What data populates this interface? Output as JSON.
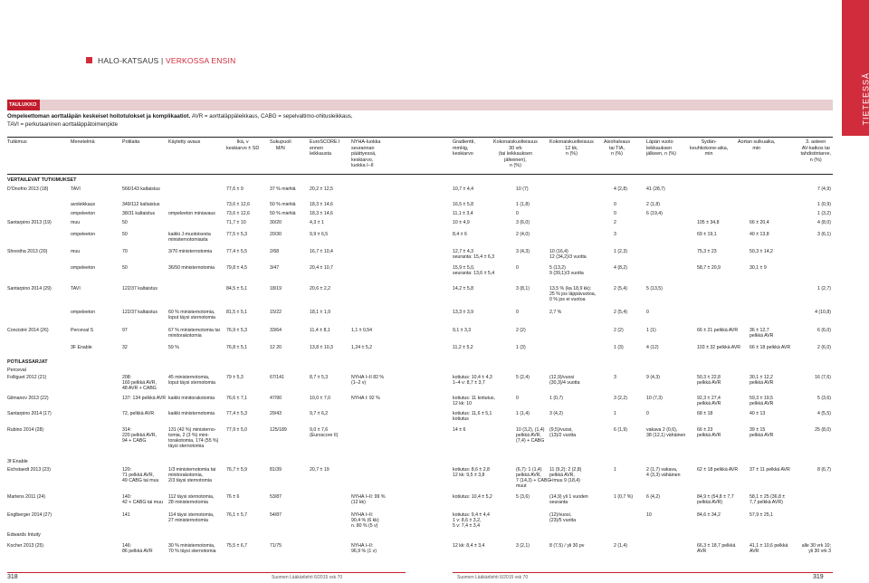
{
  "header": {
    "breadcrumb_a": "HALO-KATSAUS |",
    "breadcrumb_b": "VERKOSSA ENSIN",
    "side_label": "TIETEESSÄ"
  },
  "table": {
    "number": "TAULUKKO 2.",
    "title": "Ompeleettoman aorttaläpän keskeiset hoitotulokset ja komplikaatiot.",
    "title_abbr": "AVR = aorttaläppäleikkaus, CABG = sepelvaltimo-ohitusleikkaus,",
    "title_abbr2": "TAVI = perkutaaninen aorttaläppätoimenpide",
    "columns": [
      "Tutkimus",
      "Menetelmä",
      "Potilaita",
      "Käytetty avaus",
      "Ikä, v\nkeskiarvo ± SD",
      "Sukupuoli\nM/N",
      "EuroSCORE I\nennen\nleikkausta",
      "NYHA-luokka\nseurannan\npäättyessä,\nkeskiarvo,\nluokka I–II",
      "Gradientti,\nmmHg,\nkeskiarvo",
      "Kokonaiskuolleisuus\n30 vrk\n(tai leikkauksen\njälkeinen),\nn (%)",
      "Kokonaiskuolleisuus\n12 kk,\nn (%)",
      "Aivohalvaus\ntai TIA,\nn (%)",
      "Läpän vuoto\nleikkauksen\njälkeen, n (%)",
      "Sydän-\nkeuhkokone-aika,\nmin",
      "Aortan sulkuaika,\nmin",
      "3. asteen\nAV-katkos tai\ntahdistintarve,\nn (%)"
    ],
    "sections": [
      "VERTAILEVAT TUTKIMUKSET",
      "POTILASSARJAT",
      "Perceval",
      "3f Enable",
      "Edwards Intuity"
    ],
    "rows": [
      {
        "t": "D'Onofrio 2013 (18)",
        "m": "TAVI",
        "p": "566/143 kaltaistus",
        "a": "",
        "age": "77,6 ± 9",
        "sex": "37 % miehiä",
        "euro": "20,2 ± 12,5",
        "nyha": "",
        "grad": "10,7 ± 4,4",
        "m30": "10 (7)",
        "m12": "",
        "stroke": "4 (2,8)",
        "leak": "41 (28,7)",
        "cpb": "",
        "xcl": "",
        "av": "7 (4,9)"
      },
      {
        "t": "",
        "m": "avoleikkaus",
        "p": "349/112 kaltaistus",
        "a": "",
        "age": "73,6 ± 12,6",
        "sex": "50 % miehiä",
        "euro": "18,3 ± 14,6",
        "nyha": "",
        "grad": "16,5 ± 5,8",
        "m30": "1 (1,8)",
        "m12": "",
        "stroke": "0",
        "leak": "2 (1,8)",
        "cpb": "",
        "xcl": "",
        "av": "1 (0,9)"
      },
      {
        "t": "",
        "m": "ompeleeton",
        "p": "38/31 kaltaistus",
        "a": "ompeleeton miniavaus",
        "age": "73,6 ± 12,6",
        "sex": "50 % miehiä",
        "euro": "18,3 ± 14,6",
        "nyha": "",
        "grad": "11,1 ± 3,4",
        "m30": "0",
        "m12": "",
        "stroke": "0",
        "leak": "6 (19,4)",
        "cpb": "",
        "xcl": "",
        "av": "1 (3,2)"
      },
      {
        "t": "Santarpino 2013 (19)",
        "m": "muu",
        "p": "50",
        "a": "",
        "age": "71,7 ± 10",
        "sex": "30/20",
        "euro": "4,3 ± 1",
        "nyha": "",
        "grad": "10 ± 4,9",
        "m30": "3 (6,0)",
        "m12": "",
        "stroke": "2",
        "leak": "",
        "cpb": "105 ± 34,8",
        "xcl": "66 ± 20,4",
        "av": "4 (8,0)"
      },
      {
        "t": "",
        "m": "ompeleeton",
        "p": "50",
        "a": "kaikki J-muotoisesta\nministernotomiasta",
        "age": "77,5 ± 5,3",
        "sex": "20/30",
        "euro": "9,9 ± 6,5",
        "nyha": "",
        "grad": "8,4 ± 6",
        "m30": "2 (4,0)",
        "m12": "",
        "stroke": "3",
        "leak": "",
        "cpb": "69 ± 19,1",
        "xcl": "40 ± 13,8",
        "av": "3 (6,1)"
      },
      {
        "t": "Shrestha 2013 (20)",
        "m": "muu",
        "p": "70",
        "a": "3/70 ministernotomia",
        "age": "77,4 ± 5,5",
        "sex": "2/68",
        "euro": "16,7 ± 10,4",
        "nyha": "",
        "grad": "12,7 ± 4,3\nseuranta: 15,4 ± 6,3",
        "m30": "3 (4,3)",
        "m12": "10 (16,4)\n12 (34,2)/3 vuotta",
        "stroke": "1 (2,3)",
        "leak": "",
        "cpb": "75,3 ± 23",
        "xcl": "50,3 ± 14,2",
        "av": ""
      },
      {
        "t": "",
        "m": "ompeleeton",
        "p": "50",
        "a": "36/50 ministernotomia",
        "age": "79,8 ± 4,5",
        "sex": "3/47",
        "euro": "20,4 ± 10,7",
        "nyha": "",
        "grad": "15,9 ± 5,0,\nseuranta: 13,6 ± 5,4",
        "m30": "0",
        "m12": "5 (13,2)\n9 (39,1)/3 vuotta",
        "stroke": "4 (8,2)",
        "leak": "",
        "cpb": "58,7 ± 20,9",
        "xcl": "30,1 ± 9",
        "av": ""
      },
      {
        "t": "Santarpino 2014 (29)",
        "m": "TAVI",
        "p": "122/37 kaltaistus",
        "a": "",
        "age": "84,5 ± 5,1",
        "sex": "18/19",
        "euro": "20,6 ± 2,2",
        "nyha": "",
        "grad": "14,2 ± 5,8",
        "m30": "3 (8,1)",
        "m12": "13,5 % (ka 18,9 kk):\n25 % jos läppävuotoa,\n0 % jos ei vuotoa",
        "stroke": "2 (5,4)",
        "leak": "5 (13,5)",
        "cpb": "",
        "xcl": "",
        "av": "1 (2,7)"
      },
      {
        "t": "",
        "m": "ompeleeton",
        "p": "122/37 kaltaistus",
        "a": "60 % ministernotomia,\nloput täysi sternotomia",
        "age": "81,5 ± 5,1",
        "sex": "15/22",
        "euro": "18,1 ± 1,9",
        "nyha": "",
        "grad": "13,3 ± 3,9",
        "m30": "0",
        "m12": "2,7 %",
        "stroke": "2 (5,4)",
        "leak": "0",
        "cpb": "",
        "xcl": "",
        "av": "4 (10,8)"
      },
      {
        "t": "Concistrè 2014 (26)",
        "m": "Perceval S",
        "p": "97",
        "a": "67 % ministernotomia tai\nminitorakotomia",
        "age": "76,9 ± 5,3",
        "sex": "33/64",
        "euro": "11,4 ± 8,1",
        "nyha": "1,1 ± 0,54",
        "grad": "9,1 ± 3,3",
        "m30": "2 (2)",
        "m12": "",
        "stroke": "2 (2)",
        "leak": "1 (1)",
        "cpb": "66 ± 21 pelkkä AVR",
        "xcl": "36 ± 12,7\npelkkä AVR",
        "av": "6 (6,0)"
      },
      {
        "t": "",
        "m": "3F Enable",
        "p": "32",
        "a": "59 %",
        "age": "76,8 ± 5,1",
        "sex": "12 20",
        "euro": "13,8 ± 10,3",
        "nyha": "1,24 ± 5,2",
        "grad": "11,2 ± 5,2",
        "m30": "1 (3)",
        "m12": "",
        "stroke": "1 (3)",
        "leak": "4 (12)",
        "cpb": "103 ± 32 pelkkä AVR",
        "xcl": "66 ± 18 pelkkä AVR",
        "av": "2 (6,0)"
      },
      {
        "t": "Folliguet 2012 (21)",
        "m": "",
        "p": "208:\n160 pelkkä AVR,\n48 AVR + CABG",
        "a": "45 ministernotomia,\nloput täysi sternotomia",
        "age": "79 ± 5,3",
        "sex": "67/141",
        "euro": "8,7 ± 5,3",
        "nyha": "NYHA I–II 82 %\n(1–2 v)",
        "grad": "kotiutus: 10,4 ± 4,3\n1–4 v: 8,7 ± 3,7",
        "m30": "5 (2,4)",
        "m12": "(12,9)/vuosi\n(30,3)/4 vuotta",
        "stroke": "3",
        "leak": "9 (4,3)",
        "cpb": "50,3 ± 22,8\npelkkä AVR",
        "xcl": "30,1 ± 12,2\npelkkä AVR",
        "av": "16 (7,6)"
      },
      {
        "t": "Gilmanov 2013 (22)",
        "m": "",
        "p": "137: 134 pelkkä AVR",
        "a": "kaikki minitorakotomia",
        "age": "76,6 ± 7,1",
        "sex": "47/90",
        "euro": "10,0 ± 7,0",
        "nyha": "NYHA I: 92 %",
        "grad": "kotiutus: 11 kotiutus,\n12 kk: 10",
        "m30": "0",
        "m12": "1 (0,7)",
        "stroke": "3 (2,2)",
        "leak": "10 (7,3)",
        "cpb": "92,3 ± 27,4\npelkkä AVR",
        "xcl": "59,3 ± 19,5\npelkkä AVR",
        "av": "5 (3,6)"
      },
      {
        "t": "Santarpino 2014 (17)",
        "m": "",
        "p": "72, pelkkä AVR",
        "a": "kaikki ministernotomia",
        "age": "77,4 ± 5,3",
        "sex": "29/43",
        "euro": "9,7 ± 6,2",
        "nyha": "",
        "grad": "kotiutus: 11,6 ± 5,1\nkotiutus",
        "m30": "1 (1,4)",
        "m12": "3 (4,2)",
        "stroke": "1",
        "leak": "0",
        "cpb": "68 ± 18",
        "xcl": "40 ± 13",
        "av": "4 (5,5)"
      },
      {
        "t": "Rubino 2014 (28)",
        "m": "",
        "p": "314:\n220 pelkkä AVR,\n94 + CABG",
        "a": "131 (42 %) ministerno-\ntomia, 2 (3 %) mini-\ntorakotomia, 174 (55 %)\ntäysi sternotomia",
        "age": "77,9 ± 5,0",
        "sex": "125/189",
        "euro": "9,0 ± 7,6\n(Euroscore II)",
        "nyha": "",
        "grad": "14 ± 6",
        "m30": "10 (3,2), (1,4)\npelkkä AVR,\n(7,4) + CABG",
        "m12": "(9,5)/vuosi,\n(13)/2 vuotta",
        "stroke": "6 (1,9)",
        "leak": "vakava 2 (0,6),\n38 (12,1) vähäinen",
        "cpb": "66 ± 23\npelkkä AVR",
        "xcl": "39 ± 15\npelkkä AVR",
        "av": "25 (8,0)"
      },
      {
        "t": "Eichstaedt 2013 (23)",
        "m": "",
        "p": "120:\n71 pelkkä AVR,\n49 CABG tai muu",
        "a": "1/3 ministernotomia tai\nminitorakotomia,\n2/3 täysi sternotomia",
        "age": "76,7 ± 5,9",
        "sex": "81/39",
        "euro": "20,7 ± 19",
        "nyha": "",
        "grad": "kotiutus: 8,6 ± 2,8\n12 kk: 9,5 ± 3,8",
        "m30": "(6,7): 1 (1,4)\npelkkä AVR,\n7 (14,3) + CABG /\nmuut",
        "m12": "11 (9,2): 2 (2,8)\npelkkä AVR,\n+ muu 9 (18,4)",
        "stroke": "1",
        "leak": "2 (1,7) vakava,\n4 (3,3) vähäinen",
        "cpb": "62 ± 18 pelkkä AVR",
        "xcl": "37 ± 11 pelkkä AVR",
        "av": "8 (6,7)"
      },
      {
        "t": "Martens 2011 (24)",
        "m": "",
        "p": "140:\n42 + CABG tai muu",
        "a": "112 täysi sternotomia,\n28 ministernotomia",
        "age": "76 ± 6",
        "sex": "53/87",
        "euro": "",
        "nyha": "NYHA I–II: 99 %\n(12 kk)",
        "grad": "kotiutus: 10,4 ± 5,2",
        "m30": "5 (3,6)",
        "m12": "(14,9) yli 1 vuoden\nseuranta",
        "stroke": "1 (0,7 %)",
        "leak": "6 (4,2)",
        "cpb": "84,9 ± (54,8 ± 7,7\npelkkä AVR)",
        "xcl": "58,1 ± 25 (36,8 ±\n7,7 pelkkä AVR)",
        "av": ""
      },
      {
        "t": "Englberger 2014 (27)",
        "m": "",
        "p": "141",
        "a": "114 täysi sternotomia,\n27 ministernotomia",
        "age": "76,1 ± 5,7",
        "sex": "54/87",
        "euro": "",
        "nyha": "NYHA I–II:\n90,4 % (6 kk)\nn. 80 % (5 v)",
        "grad": "kotiutus: 9,4 ± 4,4\n1 v: 8,6 ± 3,2,\n5 v: 7,4 ± 3,4",
        "m30": "",
        "m12": "(12)/vuosi,\n(23)/5 vuotta",
        "stroke": "",
        "leak": "10",
        "cpb": "84,6 ± 34,2",
        "xcl": "57,9 ± 25,1",
        "av": ""
      },
      {
        "t": "Kocher 2013 (25)",
        "m": "",
        "p": "146:\n86 pelkkä AVR",
        "a": "30 % ministernotomia,\n70 % täysi sternotomia",
        "age": "75,5 ± 6,7",
        "sex": "71/75",
        "euro": "",
        "nyha": "NYHA I–II:\n96,9 % (1 v)",
        "grad": "12 kk: 8,4 ± 3,4",
        "m30": "3 (2,1)",
        "m12": "8 (7,5) / yli 30 pv",
        "stroke": "2 (1,4)",
        "leak": "",
        "cpb": "66,3 ± 18,7 pelkkä\nAVR",
        "xcl": "41,1 ± 10,6 pelkkä\nAVR",
        "av": "alle 30 vrk 10;\nyli 30 vrk 3"
      }
    ]
  },
  "footer": {
    "page_left": "318",
    "journal_left": "Suomen Lääkärilehti 6/2015 vsk 70",
    "journal_right": "Suomen Lääkärilehti 6/2015 vsk 70",
    "page_right": "319"
  }
}
